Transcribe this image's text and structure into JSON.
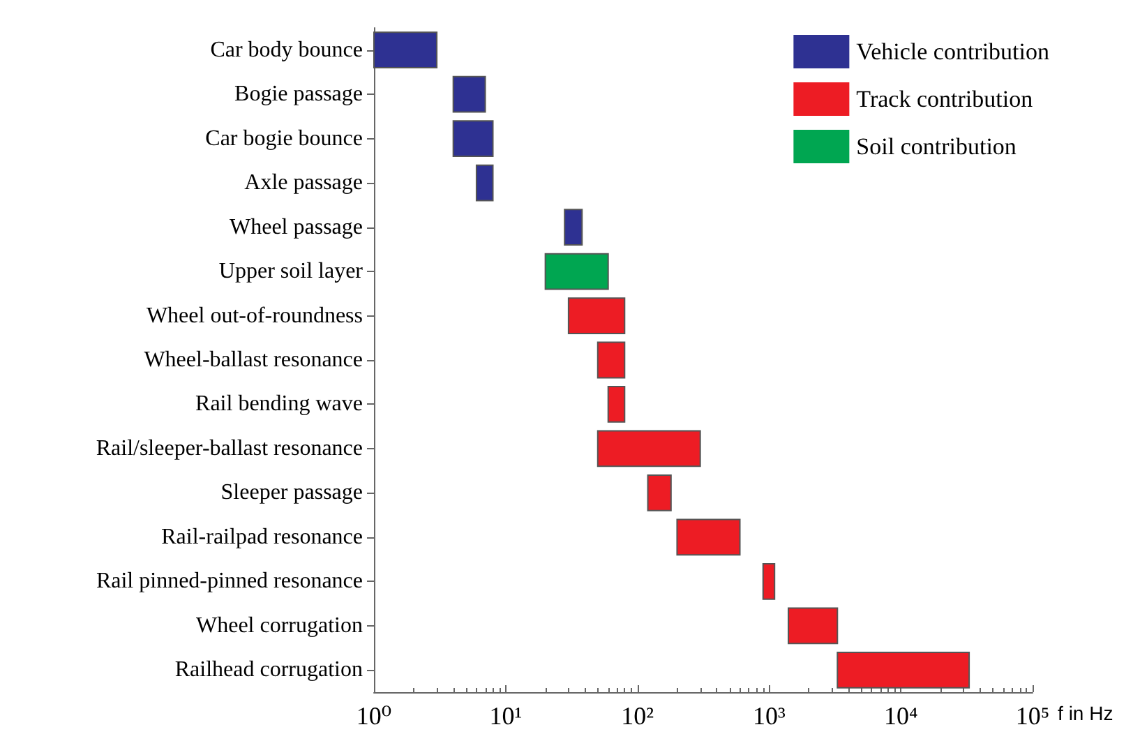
{
  "chart_data": {
    "type": "bar",
    "orientation": "horizontal",
    "log": "x",
    "xlabel": "f in Hz",
    "categories": [
      "Car body bounce",
      "Bogie passage",
      "Car bogie bounce",
      "Axle passage",
      "Wheel passage",
      "Upper soil layer",
      "Wheel out-of-roundness",
      "Wheel-ballast resonance",
      "Rail bending wave",
      "Rail/sleeper-ballast resonance",
      "Sleeper passage",
      "Rail-railpad resonance",
      "Rail pinned-pinned resonance",
      "Wheel corrugation",
      "Railhead corrugation"
    ],
    "series": [
      {
        "name": "Vehicle contribution",
        "color": "#2e3192",
        "base": [
          1,
          4,
          4,
          6,
          28,
          null,
          null,
          null,
          null,
          null,
          null,
          null,
          null,
          null,
          null
        ],
        "values": [
          2,
          3,
          4,
          2,
          10,
          null,
          null,
          null,
          null,
          null,
          null,
          null,
          null,
          null,
          null
        ]
      },
      {
        "name": "Track contribution",
        "color": "#ed1c24",
        "base": [
          null,
          null,
          null,
          null,
          null,
          null,
          30,
          50,
          60,
          50,
          120,
          200,
          900,
          1400,
          3300
        ],
        "values": [
          null,
          null,
          null,
          null,
          null,
          null,
          50,
          30,
          20,
          250,
          60,
          400,
          200,
          1900,
          29700
        ]
      },
      {
        "name": "Soil contribution",
        "color": "#00a651",
        "base": [
          null,
          null,
          null,
          null,
          null,
          20,
          null,
          null,
          null,
          null,
          null,
          null,
          null,
          null,
          null
        ],
        "values": [
          null,
          null,
          null,
          null,
          null,
          40,
          null,
          null,
          null,
          null,
          null,
          null,
          null,
          null,
          null
        ]
      }
    ],
    "xlim": [
      1,
      100000
    ],
    "xticks": [
      {
        "value": 1,
        "label": "10⁰"
      },
      {
        "value": 10,
        "label": "10¹"
      },
      {
        "value": 100,
        "label": "10²"
      },
      {
        "value": 1000,
        "label": "10³"
      },
      {
        "value": 10000,
        "label": "10⁴"
      },
      {
        "value": 100000,
        "label": "10⁵"
      }
    ],
    "grid": false,
    "legend": "top right"
  }
}
